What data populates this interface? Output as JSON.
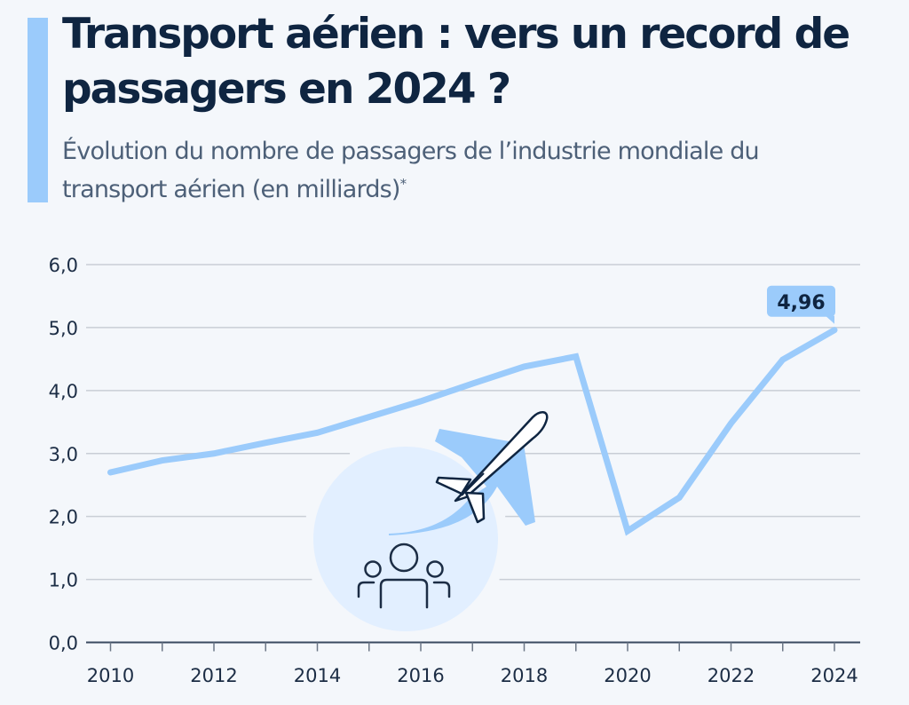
{
  "header": {
    "title": "Transport aérien : vers un record de passagers en 2024 ?",
    "subtitle": "Évolution du nombre de passagers de l’industrie mondiale du transport aérien (en milliards)",
    "subtitle_footnote_mark": "*"
  },
  "colors": {
    "accent": "#9bcbfb",
    "line": "#9bcbfb",
    "text_dark": "#0f2541",
    "background": "#f4f7fb",
    "illustration_circle": "#e2efff"
  },
  "illustration": {
    "icons": [
      "airplane-icon",
      "people-group-icon"
    ]
  },
  "chart_data": {
    "type": "line",
    "title": "Transport aérien : vers un record de passagers en 2024 ?",
    "subtitle": "Évolution du nombre de passagers de l’industrie mondiale du transport aérien (en milliards)*",
    "xlabel": "",
    "ylabel": "",
    "x": [
      2010,
      2011,
      2012,
      2013,
      2014,
      2015,
      2016,
      2017,
      2018,
      2019,
      2020,
      2021,
      2022,
      2023,
      2024
    ],
    "series": [
      {
        "name": "Passagers (milliards)",
        "values": [
          2.7,
          2.89,
          3.0,
          3.17,
          3.33,
          3.58,
          3.83,
          4.11,
          4.38,
          4.54,
          1.77,
          2.3,
          3.48,
          4.49,
          4.96
        ]
      }
    ],
    "ylim": [
      0,
      6
    ],
    "xlim": [
      2010,
      2024
    ],
    "yticks": [
      0,
      1,
      2,
      3,
      4,
      5,
      6
    ],
    "ytick_labels": [
      "0,0",
      "1,0",
      "2,0",
      "3,0",
      "4,0",
      "5,0",
      "6,0"
    ],
    "xticks_labeled": [
      2010,
      2012,
      2014,
      2016,
      2018,
      2020,
      2022,
      2024
    ],
    "xtick_labels": [
      "2010",
      "2012",
      "2014",
      "2016",
      "2018",
      "2020",
      "2022",
      "2024"
    ],
    "grid": true,
    "annotations": [
      {
        "x": 2024,
        "y": 4.96,
        "text": "4,96"
      }
    ]
  }
}
